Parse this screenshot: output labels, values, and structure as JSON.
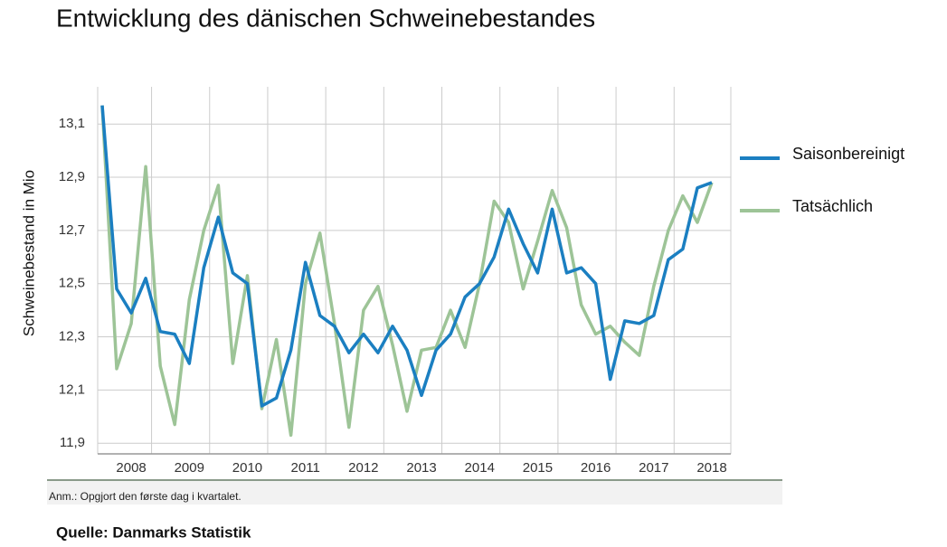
{
  "chart_data": {
    "type": "line",
    "title": "Entwicklung des dänischen Schweinebestandes",
    "y_label": "Schweinebestand in Mio",
    "note": "Anm.: Opgjort den første dag i kvartalet.",
    "source": "Quelle: Danmarks Statistik",
    "categories": [
      null,
      null,
      "2008",
      null,
      null,
      null,
      "2009",
      null,
      null,
      null,
      "2010",
      null,
      null,
      null,
      "2011",
      null,
      null,
      null,
      "2012",
      null,
      null,
      null,
      "2013",
      null,
      null,
      null,
      "2014",
      null,
      null,
      null,
      "2015",
      null,
      null,
      null,
      "2016",
      null,
      null,
      null,
      "2017",
      null,
      null,
      null,
      "2018"
    ],
    "series": [
      {
        "name": "Saisonbereinigt",
        "color": "#1b7fc1",
        "values": [
          13.17,
          12.48,
          12.39,
          12.52,
          12.32,
          12.31,
          12.2,
          12.56,
          12.75,
          12.54,
          12.5,
          12.04,
          12.07,
          12.25,
          12.58,
          12.38,
          12.34,
          12.24,
          12.31,
          12.24,
          12.34,
          12.25,
          12.08,
          12.25,
          12.31,
          12.45,
          12.5,
          12.6,
          12.78,
          12.65,
          12.54,
          12.78,
          12.54,
          12.56,
          12.5,
          12.14,
          12.36,
          12.35,
          12.38,
          12.59,
          12.63,
          12.86,
          12.88
        ]
      },
      {
        "name": "Tatsächlich",
        "color": "#9dc497",
        "values": [
          13.17,
          12.18,
          12.35,
          12.94,
          12.19,
          11.97,
          12.44,
          12.7,
          12.87,
          12.2,
          12.53,
          12.03,
          12.29,
          11.93,
          12.5,
          12.69,
          12.35,
          11.96,
          12.4,
          12.49,
          12.27,
          12.02,
          12.25,
          12.26,
          12.4,
          12.26,
          12.5,
          12.81,
          12.73,
          12.48,
          12.66,
          12.85,
          12.71,
          12.42,
          12.31,
          12.34,
          12.28,
          12.23,
          12.49,
          12.7,
          12.83,
          12.73,
          12.88
        ]
      }
    ],
    "ylim": [
      11.86,
      13.24
    ],
    "yticks": [
      {
        "value": 11.9,
        "label": "11,9"
      },
      {
        "value": 12.1,
        "label": "12,1"
      },
      {
        "value": 12.3,
        "label": "12,3"
      },
      {
        "value": 12.5,
        "label": "12,5"
      },
      {
        "value": 12.7,
        "label": "12,7"
      },
      {
        "value": 12.9,
        "label": "12,9"
      },
      {
        "value": 13.1,
        "label": "13,1"
      }
    ],
    "grid": true
  }
}
